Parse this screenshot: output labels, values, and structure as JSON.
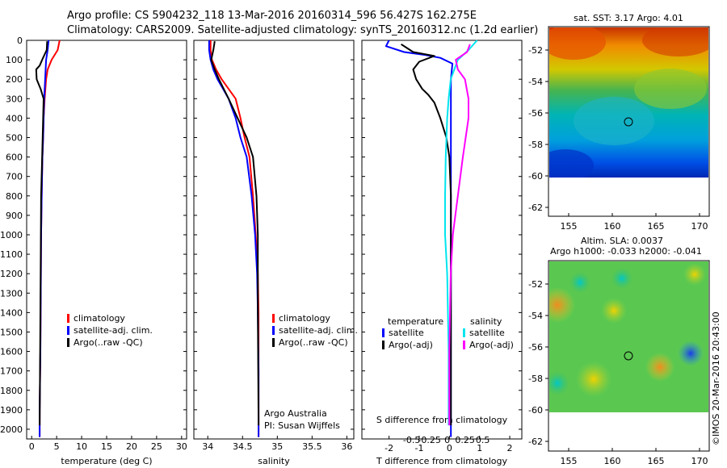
{
  "header": {
    "line1": "Argo profile: CS 5904232_118 13-Mar-2016 20160314_596 56.427S 162.275E",
    "line2": "Climatology: CARS2009. Satellite-adjusted climatology: synTS_20160312.nc (1.2d earlier)"
  },
  "depth_ticks": [
    "0",
    "100",
    "200",
    "300",
    "400",
    "500",
    "600",
    "700",
    "800",
    "900",
    "1000",
    "1100",
    "1200",
    "1300",
    "1400",
    "1500",
    "1600",
    "1700",
    "1800",
    "1900",
    "2000"
  ],
  "colors": {
    "climatology": "#ff0000",
    "satellite": "#0000ff",
    "argo": "#000000",
    "sat_salt": "#00e5ee",
    "argo_salt": "#ff00ff"
  },
  "chart_data": [
    {
      "type": "line",
      "id": "temperature",
      "title": "",
      "xlabel": "temperature (deg C)",
      "ylabel": "depth",
      "xlim": [
        -1,
        31
      ],
      "ylim": [
        2050,
        0
      ],
      "xticks": [
        "0",
        "5",
        "10",
        "15",
        "20",
        "25",
        "30"
      ],
      "legend": [
        "climatology",
        "satellite-adj. clim.",
        "Argo(..raw -QC)"
      ],
      "series": [
        {
          "name": "climatology",
          "color": "#ff0000",
          "x": [
            5.6,
            5.2,
            4.0,
            3.2,
            2.9,
            2.6,
            2.4,
            2.3,
            2.15,
            2.0,
            1.9,
            1.85,
            1.8,
            1.75,
            1.7,
            1.65,
            1.6,
            1.6
          ],
          "y": [
            0,
            50,
            100,
            150,
            200,
            300,
            400,
            500,
            600,
            800,
            1000,
            1200,
            1400,
            1600,
            1700,
            1800,
            1900,
            2040
          ]
        },
        {
          "name": "satellite-adj. clim.",
          "color": "#0000ff",
          "x": [
            3.4,
            3.2,
            2.9,
            2.8,
            2.7,
            2.5,
            2.4,
            2.3,
            2.15,
            2.0,
            1.9,
            1.85,
            1.8,
            1.75,
            1.7,
            1.65,
            1.6,
            1.6
          ],
          "y": [
            0,
            50,
            100,
            150,
            200,
            300,
            400,
            500,
            600,
            800,
            1000,
            1200,
            1400,
            1600,
            1700,
            1800,
            1900,
            2040
          ]
        },
        {
          "name": "Argo(..raw -QC)",
          "color": "#000000",
          "x": [
            3.1,
            3.0,
            2.1,
            1.6,
            0.9,
            1.0,
            1.8,
            2.4,
            2.3,
            2.1,
            1.9,
            1.8,
            1.7,
            1.6
          ],
          "y": [
            5,
            50,
            100,
            130,
            150,
            200,
            250,
            300,
            400,
            600,
            800,
            1200,
            1600,
            1980
          ]
        }
      ]
    },
    {
      "type": "line",
      "id": "salinity",
      "title": "",
      "xlabel": "salinity",
      "ylabel": "depth",
      "xlim": [
        33.8,
        36.1
      ],
      "ylim": [
        2050,
        0
      ],
      "xticks": [
        "34",
        "34.5",
        "35",
        "35.5",
        "36"
      ],
      "legend": [
        "climatology",
        "satellite-adj. clim.",
        "Argo(..raw -QC)"
      ],
      "annotations": [
        "Argo Australia",
        "PI: Susan Wijffels"
      ],
      "series": [
        {
          "name": "climatology",
          "color": "#ff0000",
          "x": [
            34.04,
            34.04,
            34.06,
            34.12,
            34.2,
            34.3,
            34.4,
            34.47,
            34.53,
            34.6,
            34.65,
            34.69,
            34.72,
            34.73,
            34.73,
            34.73
          ],
          "y": [
            0,
            50,
            100,
            150,
            200,
            250,
            300,
            400,
            500,
            600,
            800,
            1000,
            1200,
            1400,
            1700,
            2040
          ]
        },
        {
          "name": "satellite-adj. clim.",
          "color": "#0000ff",
          "x": [
            34.02,
            34.02,
            34.04,
            34.08,
            34.14,
            34.22,
            34.3,
            34.4,
            34.47,
            34.56,
            34.63,
            34.68,
            34.71,
            34.72,
            34.73,
            34.73
          ],
          "y": [
            0,
            50,
            100,
            150,
            200,
            250,
            300,
            400,
            500,
            600,
            800,
            1000,
            1200,
            1400,
            1700,
            2040
          ]
        },
        {
          "name": "Argo(..raw -QC)",
          "color": "#000000",
          "x": [
            34.1,
            34.08,
            34.05,
            34.1,
            34.16,
            34.3,
            34.43,
            34.56,
            34.65,
            34.7,
            34.72,
            34.72,
            34.73
          ],
          "y": [
            5,
            50,
            100,
            150,
            200,
            300,
            400,
            500,
            600,
            800,
            1000,
            1400,
            1980
          ]
        }
      ]
    },
    {
      "type": "line",
      "id": "difference",
      "title": "",
      "xlabel": "T difference from climatology",
      "xlabel_top": "S difference from climatology",
      "ylabel": "depth",
      "xlim": [
        -2.9,
        2.4
      ],
      "ylim": [
        2050,
        0
      ],
      "xticks_T": [
        "-2",
        "-1",
        "0",
        "1",
        "2"
      ],
      "xticks_S": [
        "-0.5",
        "-0.25",
        "0",
        "0.25",
        "0.5"
      ],
      "legend_temperature": {
        "title": "temperature",
        "items": [
          "satellite",
          "Argo(-adj)"
        ]
      },
      "legend_salinity": {
        "title": "salinity",
        "items": [
          "satellite",
          "Argo(-adj)"
        ]
      },
      "series": [
        {
          "name": "T satellite",
          "color": "#0000ff",
          "x": [
            -2.0,
            -2.1,
            -1.5,
            -0.8,
            -0.3,
            0.1,
            0.05,
            0.05,
            0.05,
            0.05,
            0.05,
            0.05,
            0.05,
            0.05
          ],
          "y": [
            0,
            30,
            60,
            75,
            90,
            120,
            200,
            400,
            800,
            1200,
            1600,
            1800,
            1900,
            2040
          ]
        },
        {
          "name": "T Argo(-adj)",
          "color": "#000000",
          "x": [
            -1.6,
            -1.2,
            -0.5,
            -1.0,
            -1.2,
            -1.1,
            -0.9,
            -0.7,
            -0.5,
            -0.3,
            -0.1,
            0.0,
            0.05,
            0.05,
            0.05,
            0.05
          ],
          "y": [
            20,
            60,
            80,
            110,
            150,
            200,
            250,
            280,
            320,
            400,
            500,
            600,
            800,
            1200,
            1600,
            1980
          ]
        },
        {
          "name": "S satellite",
          "color": "#00e5ee",
          "x": [
            0.42,
            0.3,
            0.15,
            0.1,
            0.05,
            0.02,
            0.0,
            -0.02,
            -0.03,
            -0.03,
            0.0,
            0.02,
            0.02
          ],
          "y": [
            0,
            50,
            100,
            150,
            200,
            300,
            400,
            600,
            800,
            1000,
            1200,
            1600,
            1980
          ]
        },
        {
          "name": "S Argo(-adj)",
          "color": "#ff00ff",
          "x": [
            0.32,
            0.28,
            0.12,
            0.15,
            0.25,
            0.3,
            0.3,
            0.22,
            0.15,
            0.08,
            0.05,
            0.03,
            0.03
          ],
          "y": [
            20,
            60,
            100,
            150,
            200,
            300,
            400,
            600,
            800,
            1000,
            1200,
            1600,
            1980
          ]
        }
      ]
    }
  ],
  "maps": {
    "sst": {
      "title": "sat. SST: 3.17 Argo: 4.01",
      "yticks": [
        "-52",
        "-54",
        "-56",
        "-58",
        "-60",
        "-62"
      ],
      "xticks": [
        "155",
        "160",
        "165",
        "170"
      ]
    },
    "sla": {
      "title1": "Altim. SLA: 0.0037",
      "title2": "Argo h1000: -0.033 h2000: -0.041",
      "yticks": [
        "-52",
        "-54",
        "-56",
        "-58",
        "-60",
        "-62"
      ],
      "xticks": [
        "155",
        "160",
        "165",
        "170"
      ]
    }
  },
  "credit": "©IMOS 20-Mar-2016 20:43:00"
}
